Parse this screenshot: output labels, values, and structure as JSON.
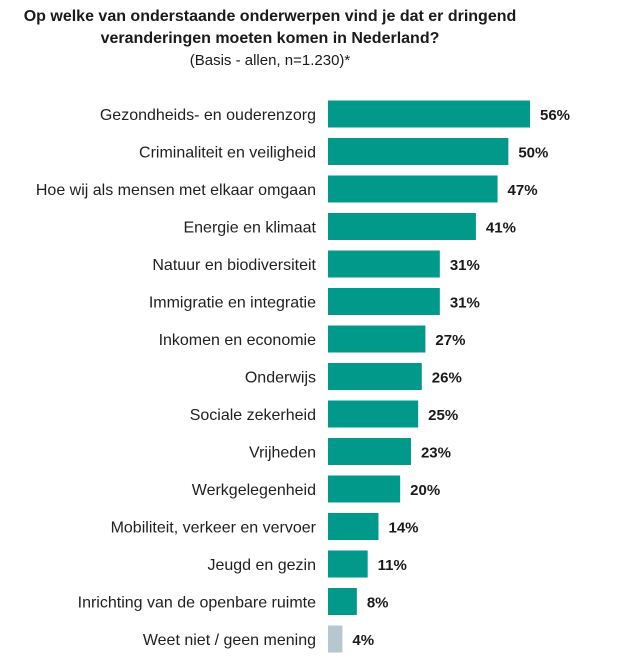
{
  "title_lines": [
    "Op welke van onderstaande onderwerpen vind je dat er dringend",
    "veranderingen moeten komen in Nederland?"
  ],
  "subtitle": "(Basis - allen, n=1.230)*",
  "colors": {
    "bar": "#00998a",
    "bar_muted": "#b7c7cf"
  },
  "chart_data": {
    "type": "bar",
    "orientation": "horizontal",
    "title": "Op welke van onderstaande onderwerpen vind je dat er dringend veranderingen moeten komen in Nederland?",
    "subtitle": "(Basis - allen, n=1.230)*",
    "categories": [
      "Gezondheids- en ouderenzorg",
      "Criminaliteit en veiligheid",
      "Hoe wij als mensen met elkaar omgaan",
      "Energie en klimaat",
      "Natuur en biodiversiteit",
      "Immigratie en integratie",
      "Inkomen en economie",
      "Onderwijs",
      "Sociale zekerheid",
      "Vrijheden",
      "Werkgelegenheid",
      "Mobiliteit, verkeer en vervoer",
      "Jeugd en gezin",
      "Inrichting van de openbare ruimte",
      "Weet niet / geen mening"
    ],
    "values": [
      56,
      50,
      47,
      41,
      31,
      31,
      27,
      26,
      25,
      23,
      20,
      14,
      11,
      8,
      4
    ],
    "value_labels": [
      "56%",
      "50%",
      "47%",
      "41%",
      "31%",
      "31%",
      "27%",
      "26%",
      "25%",
      "23%",
      "20%",
      "14%",
      "11%",
      "8%",
      "4%"
    ],
    "muted_categories": [
      "Weet niet / geen mening"
    ],
    "xlim": [
      0,
      56
    ],
    "grid": false,
    "legend": "none"
  }
}
